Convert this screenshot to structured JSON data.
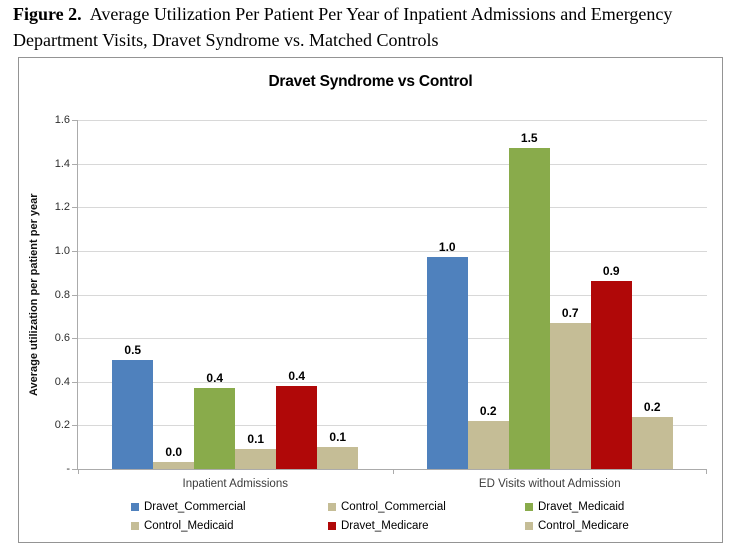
{
  "figure_caption": {
    "label": "Figure 2.",
    "text": "Average Utilization Per Patient Per Year of Inpatient Admissions and Emergency Department Visits, Dravet Syndrome vs. Matched Controls"
  },
  "chart_data": {
    "type": "bar",
    "title": "Dravet Syndrome vs Control",
    "ylabel": "Average utilization per patient per year",
    "xlabel": "",
    "categories": [
      "Inpatient Admissions",
      "ED Visits without Admission"
    ],
    "series": [
      {
        "name": "Dravet_Commercial",
        "color": "#4F81BD",
        "values": [
          0.5,
          1.0
        ],
        "bar_heights": [
          0.5,
          0.97
        ]
      },
      {
        "name": "Control_Commercial",
        "color": "#C5BD96",
        "values": [
          0.0,
          0.2
        ],
        "bar_heights": [
          0.03,
          0.22
        ]
      },
      {
        "name": "Dravet_Medicaid",
        "color": "#89AB4B",
        "values": [
          0.4,
          1.5
        ],
        "bar_heights": [
          0.37,
          1.47
        ]
      },
      {
        "name": "Control_Medicaid",
        "color": "#C5BD96",
        "values": [
          0.1,
          0.7
        ],
        "bar_heights": [
          0.09,
          0.67
        ]
      },
      {
        "name": "Dravet_Medicare",
        "color": "#B00808",
        "values": [
          0.4,
          0.9
        ],
        "bar_heights": [
          0.38,
          0.86
        ]
      },
      {
        "name": "Control_Medicare",
        "color": "#C5BD96",
        "values": [
          0.1,
          0.2
        ],
        "bar_heights": [
          0.1,
          0.24
        ]
      }
    ],
    "ylim": [
      0,
      1.6
    ],
    "yticks": [
      {
        "label": "1.6",
        "value": 1.6
      },
      {
        "label": "1.4",
        "value": 1.4
      },
      {
        "label": "1.2",
        "value": 1.2
      },
      {
        "label": "1.0",
        "value": 1.0
      },
      {
        "label": "0.8",
        "value": 0.8
      },
      {
        "label": "0.6",
        "value": 0.6
      },
      {
        "label": "0.4",
        "value": 0.4
      },
      {
        "label": "0.2",
        "value": 0.2
      },
      {
        "label": "-",
        "value": 0
      }
    ],
    "grid": true,
    "legend_position": "bottom",
    "legend_rows": 2,
    "data_labels_decimals": 1
  }
}
